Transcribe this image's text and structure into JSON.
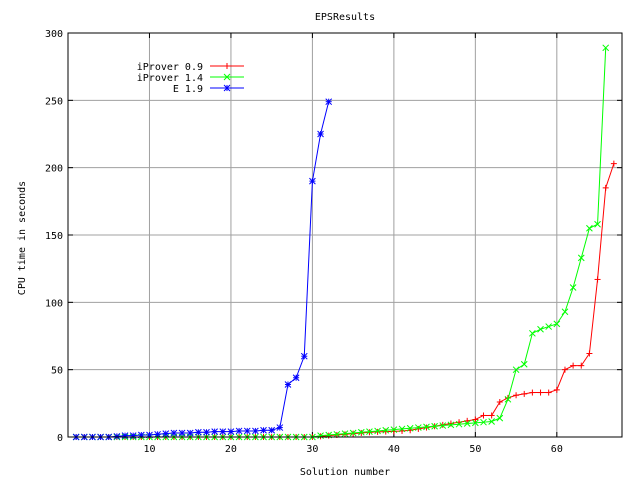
{
  "chart_data": {
    "type": "line",
    "title": "EPSResults",
    "xlabel": "Solution number",
    "ylabel": "CPU time in seconds",
    "xlim": [
      0,
      68
    ],
    "ylim": [
      0,
      300
    ],
    "x_ticks": [
      10,
      20,
      30,
      40,
      50,
      60
    ],
    "y_ticks": [
      0,
      50,
      100,
      150,
      200,
      250,
      300
    ],
    "grid": true,
    "legend_position": "top-left",
    "series": [
      {
        "name": "iProver 0.9",
        "color": "#ff0000",
        "marker": "plus",
        "x": [
          1,
          2,
          3,
          4,
          5,
          6,
          7,
          8,
          9,
          10,
          11,
          12,
          13,
          14,
          15,
          16,
          17,
          18,
          19,
          20,
          21,
          22,
          23,
          24,
          25,
          26,
          27,
          28,
          29,
          30,
          31,
          32,
          33,
          34,
          35,
          36,
          37,
          38,
          39,
          40,
          41,
          42,
          43,
          44,
          45,
          46,
          47,
          48,
          49,
          50,
          51,
          52,
          53,
          54,
          55,
          56,
          57,
          58,
          59,
          60,
          61,
          62,
          63,
          64,
          65,
          66,
          67
        ],
        "y": [
          0,
          0,
          0,
          0,
          0,
          0,
          0,
          0,
          0,
          0,
          0,
          0,
          0,
          0,
          0,
          0,
          0,
          0,
          0,
          0,
          0,
          0,
          0,
          0,
          0,
          0,
          0,
          0,
          0,
          0,
          0.5,
          1,
          1.5,
          2,
          2.5,
          3,
          3.5,
          3.8,
          4,
          4.2,
          4.5,
          5,
          6,
          7,
          8,
          9,
          10,
          11,
          12,
          13,
          16,
          16,
          26,
          29,
          31,
          32,
          33,
          33,
          33,
          35,
          50,
          53,
          53,
          62,
          117,
          185,
          203
        ]
      },
      {
        "name": "iProver 1.4",
        "color": "#00ff00",
        "marker": "cross",
        "x": [
          1,
          2,
          3,
          4,
          5,
          6,
          7,
          8,
          9,
          10,
          11,
          12,
          13,
          14,
          15,
          16,
          17,
          18,
          19,
          20,
          21,
          22,
          23,
          24,
          25,
          26,
          27,
          28,
          29,
          30,
          31,
          32,
          33,
          34,
          35,
          36,
          37,
          38,
          39,
          40,
          41,
          42,
          43,
          44,
          45,
          46,
          47,
          48,
          49,
          50,
          51,
          52,
          53,
          54,
          55,
          56,
          57,
          58,
          59,
          60,
          61,
          62,
          63,
          64,
          65,
          66
        ],
        "y": [
          0,
          0,
          0,
          0,
          0,
          0,
          0,
          0,
          0,
          0,
          0,
          0,
          0,
          0,
          0,
          0,
          0,
          0,
          0,
          0,
          0,
          0,
          0,
          0,
          0,
          0,
          0,
          0,
          0,
          0,
          1,
          1.5,
          2,
          2.5,
          3,
          3.5,
          4,
          4.5,
          5,
          5.5,
          6,
          6.5,
          7,
          7.5,
          8,
          8.5,
          9,
          9.5,
          10,
          10.5,
          11,
          11.5,
          14,
          28,
          50,
          54,
          77,
          80,
          82,
          84,
          93,
          111,
          133,
          155,
          158,
          289
        ]
      },
      {
        "name": "E 1.9",
        "color": "#0000ff",
        "marker": "star",
        "x": [
          1,
          2,
          3,
          4,
          5,
          6,
          7,
          8,
          9,
          10,
          11,
          12,
          13,
          14,
          15,
          16,
          17,
          18,
          19,
          20,
          21,
          22,
          23,
          24,
          25,
          26,
          27,
          28,
          29,
          30,
          31,
          32
        ],
        "y": [
          0,
          0,
          0,
          0,
          0,
          0.5,
          1,
          1,
          1.5,
          1.5,
          2,
          2.5,
          3,
          3,
          3,
          3.5,
          3.5,
          4,
          4,
          4,
          4.5,
          4.5,
          4.5,
          5,
          5,
          7,
          39,
          44,
          60,
          190,
          225,
          249
        ]
      }
    ]
  }
}
